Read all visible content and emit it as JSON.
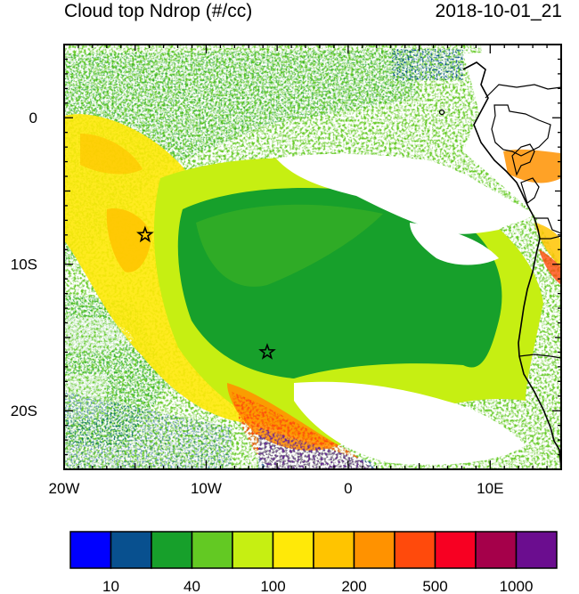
{
  "header": {
    "title": "Cloud top Ndrop (#/cc)",
    "timestamp": "2018-10-01_21"
  },
  "map": {
    "lon_range": [
      -20,
      15
    ],
    "lat_range": [
      -24,
      5
    ],
    "x_ticks": [
      {
        "value": -20,
        "label": "20W"
      },
      {
        "value": -10,
        "label": "10W"
      },
      {
        "value": 0,
        "label": "0"
      },
      {
        "value": 10,
        "label": "10E"
      }
    ],
    "y_ticks": [
      {
        "value": 0,
        "label": "0"
      },
      {
        "value": -10,
        "label": "10S"
      },
      {
        "value": -20,
        "label": "20S"
      }
    ],
    "markers": [
      {
        "name": "star-marker-1",
        "lon": -14.3,
        "lat": -8.0
      },
      {
        "name": "star-marker-2",
        "lon": -5.7,
        "lat": -16.0
      }
    ]
  },
  "colorbar": {
    "colors": [
      "#0000ff",
      "#08508f",
      "#17a02b",
      "#63c923",
      "#c6ef12",
      "#ffe908",
      "#ffc400",
      "#ff9200",
      "#ff4a0c",
      "#f70022",
      "#a5004a",
      "#6b0d8f"
    ],
    "labels": [
      {
        "boundary": 1,
        "text": "10"
      },
      {
        "boundary": 3,
        "text": "40"
      },
      {
        "boundary": 5,
        "text": "100"
      },
      {
        "boundary": 7,
        "text": "200"
      },
      {
        "boundary": 9,
        "text": "500"
      },
      {
        "boundary": 11,
        "text": "1000"
      }
    ]
  }
}
